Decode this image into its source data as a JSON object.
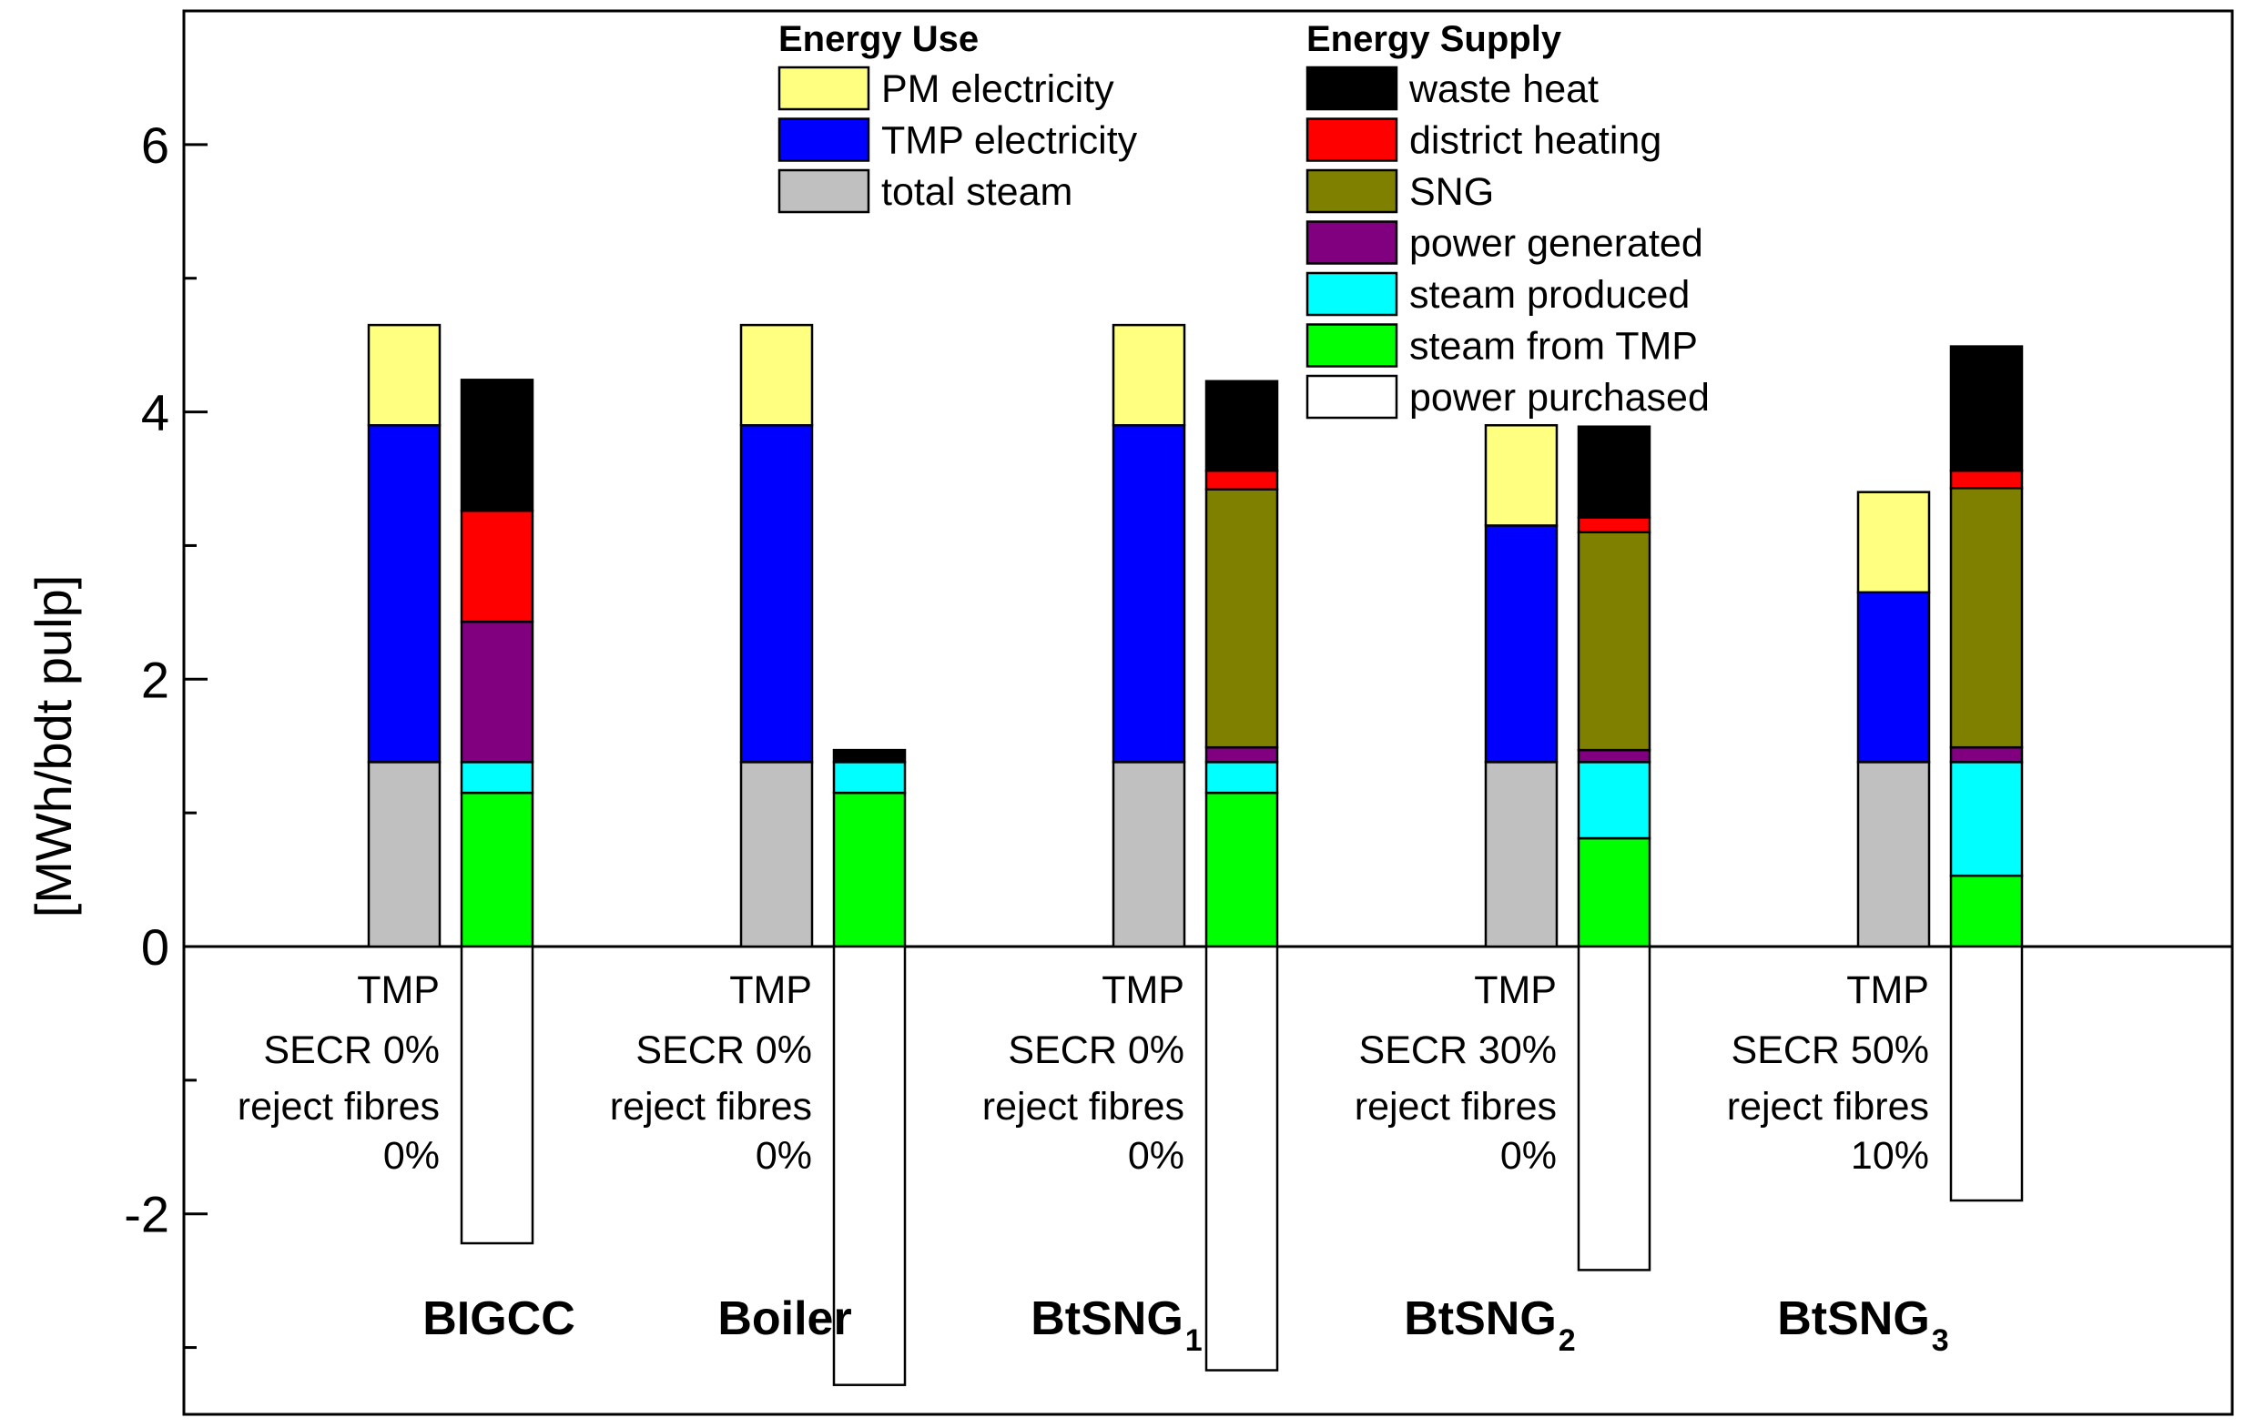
{
  "chart_data": {
    "type": "bar",
    "stacked": true,
    "ylabel": "[MWh/bdt pulp]",
    "xlabel": "",
    "ylim": [
      -3.5,
      7.0
    ],
    "yticks": [
      "-2",
      "0",
      "2",
      "4",
      "6"
    ],
    "legend_placement": "top",
    "legend_groups": [
      {
        "title": "Energy Use",
        "entries": [
          {
            "name": "PM electricity",
            "color": "#ffff80"
          },
          {
            "name": "TMP electricity",
            "color": "#0000ff"
          },
          {
            "name": "total steam",
            "color": "#c0c0c0"
          }
        ]
      },
      {
        "title": "Energy Supply",
        "entries": [
          {
            "name": "waste heat",
            "color": "#000000"
          },
          {
            "name": "district heating",
            "color": "#ff0000"
          },
          {
            "name": "SNG",
            "color": "#808000"
          },
          {
            "name": "power generated",
            "color": "#800080"
          },
          {
            "name": "steam produced",
            "color": "#00ffff"
          },
          {
            "name": "steam from TMP",
            "color": "#00ff00"
          },
          {
            "name": "power purchased",
            "color": "#ffffff"
          }
        ]
      }
    ],
    "categories": [
      {
        "name": "BIGCC",
        "sub": "",
        "scenario": [
          "TMP",
          "SECR 0%",
          "reject fibres",
          "0%"
        ]
      },
      {
        "name": "Boiler",
        "sub": "",
        "scenario": [
          "TMP",
          "SECR 0%",
          "reject fibres",
          "0%"
        ]
      },
      {
        "name": "BtSNG",
        "sub": "1",
        "scenario": [
          "TMP",
          "SECR 0%",
          "reject fibres",
          "0%"
        ]
      },
      {
        "name": "BtSNG",
        "sub": "2",
        "scenario": [
          "TMP",
          "SECR 30%",
          "reject fibres",
          "0%"
        ]
      },
      {
        "name": "BtSNG",
        "sub": "3",
        "scenario": [
          "TMP",
          "SECR 50%",
          "reject fibres",
          "10%"
        ]
      }
    ],
    "energy_use": [
      {
        "total steam": 1.38,
        "TMP electricity": 2.52,
        "PM electricity": 0.75
      },
      {
        "total steam": 1.38,
        "TMP electricity": 2.52,
        "PM electricity": 0.75
      },
      {
        "total steam": 1.38,
        "TMP electricity": 2.52,
        "PM electricity": 0.75
      },
      {
        "total steam": 1.38,
        "TMP electricity": 1.77,
        "PM electricity": 0.75
      },
      {
        "total steam": 1.38,
        "TMP electricity": 1.27,
        "PM electricity": 0.75
      }
    ],
    "energy_supply": [
      {
        "steam from TMP": 1.15,
        "steam produced": 0.23,
        "power generated": 1.05,
        "SNG": 0.0,
        "district heating": 0.83,
        "waste heat": 0.98,
        "power purchased": -2.22
      },
      {
        "steam from TMP": 1.15,
        "steam produced": 0.23,
        "power generated": 0.0,
        "SNG": 0.0,
        "district heating": 0.0,
        "waste heat": 0.09,
        "power purchased": -3.28
      },
      {
        "steam from TMP": 1.15,
        "steam produced": 0.23,
        "power generated": 0.11,
        "SNG": 1.93,
        "district heating": 0.14,
        "waste heat": 0.67,
        "power purchased": -3.17
      },
      {
        "steam from TMP": 0.81,
        "steam produced": 0.57,
        "power generated": 0.09,
        "SNG": 1.63,
        "district heating": 0.11,
        "waste heat": 0.68,
        "power purchased": -2.42
      },
      {
        "steam from TMP": 0.53,
        "steam produced": 0.85,
        "power generated": 0.11,
        "SNG": 1.94,
        "district heating": 0.13,
        "waste heat": 0.93,
        "power purchased": -1.9
      }
    ]
  }
}
